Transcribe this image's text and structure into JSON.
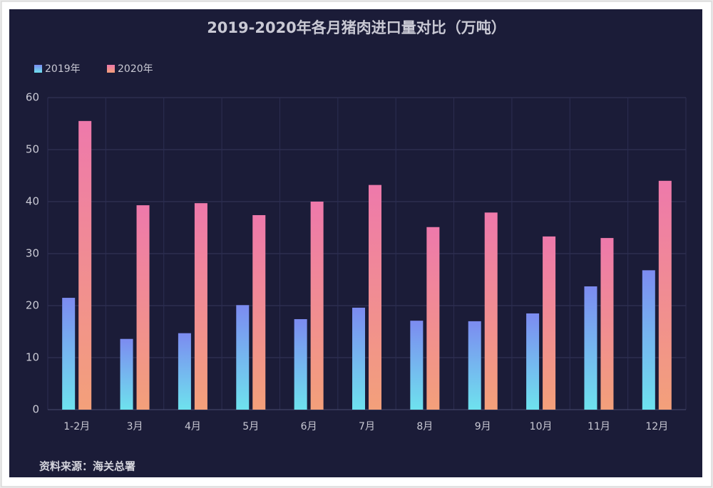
{
  "chart_data": {
    "type": "bar",
    "title": "2019-2020年各月猪肉进口量对比（万吨）",
    "source": "资料来源：海关总署",
    "categories": [
      "1-2月",
      "3月",
      "4月",
      "5月",
      "6月",
      "7月",
      "8月",
      "9月",
      "10月",
      "11月",
      "12月"
    ],
    "series": [
      {
        "name": "2019年",
        "color": [
          "#7c8bf0",
          "#6ee2ee"
        ],
        "values": [
          21.5,
          13.6,
          14.7,
          20.1,
          17.4,
          19.6,
          17.1,
          17.0,
          18.5,
          23.7,
          26.8
        ]
      },
      {
        "name": "2020年",
        "color": [
          "#ee79ab",
          "#f3a07a"
        ],
        "values": [
          55.5,
          39.3,
          39.7,
          37.4,
          40.0,
          43.2,
          35.1,
          37.9,
          33.3,
          33.0,
          44.0
        ]
      }
    ],
    "ylim": [
      0,
      60
    ],
    "yticks": [
      0,
      10,
      20,
      30,
      40,
      50,
      60
    ],
    "grid": true
  }
}
